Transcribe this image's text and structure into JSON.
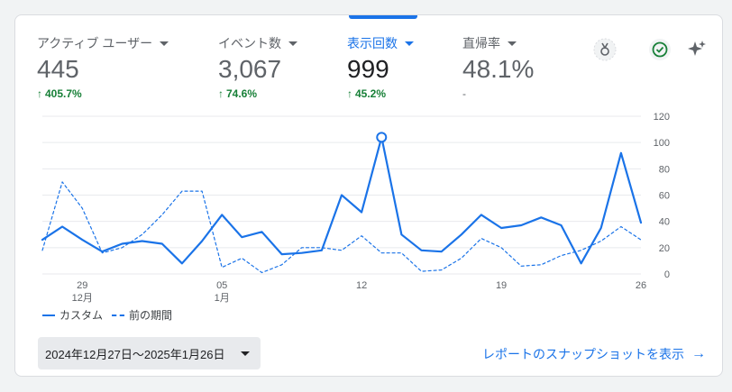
{
  "metrics": [
    {
      "label": "アクティブ ユーザー",
      "value": "445",
      "change": "405.7%",
      "change_dir": "up"
    },
    {
      "label": "イベント数",
      "value": "3,067",
      "change": "74.6%",
      "change_dir": "up"
    },
    {
      "label": "表示回数",
      "value": "999",
      "change": "45.2%",
      "change_dir": "up",
      "active": true
    },
    {
      "label": "直帰率",
      "value": "48.1%",
      "change": "-",
      "change_dir": "none"
    }
  ],
  "icons": {
    "insights": "insights-medal-icon",
    "check": "check-circle-icon",
    "sparkle": "sparkle-icon"
  },
  "colors": {
    "accent": "#1a73e8",
    "positive": "#188038"
  },
  "chart_data": {
    "type": "line",
    "x": [
      "12/27",
      "12/28",
      "12/29",
      "12/30",
      "12/31",
      "1/1",
      "1/2",
      "1/3",
      "1/4",
      "1/5",
      "1/6",
      "1/7",
      "1/8",
      "1/9",
      "1/10",
      "1/11",
      "1/12",
      "1/13",
      "1/14",
      "1/15",
      "1/16",
      "1/17",
      "1/18",
      "1/19",
      "1/20",
      "1/21",
      "1/22",
      "1/23",
      "1/24",
      "1/25",
      "1/26"
    ],
    "x_tick_labels": [
      {
        "day": "29",
        "month": "12月"
      },
      {
        "day": "05",
        "month": "1月"
      },
      {
        "day": "12",
        "month": ""
      },
      {
        "day": "19",
        "month": ""
      },
      {
        "day": "26",
        "month": ""
      }
    ],
    "x_tick_dates": [
      "12/29",
      "1/5",
      "1/12",
      "1/19",
      "1/26"
    ],
    "y_ticks": [
      0,
      20,
      40,
      60,
      80,
      100,
      120
    ],
    "ylim": [
      0,
      120
    ],
    "series": [
      {
        "name": "カスタム",
        "style": "solid",
        "values": [
          26,
          36,
          26,
          17,
          23,
          25,
          23,
          8,
          25,
          45,
          28,
          32,
          15,
          16,
          18,
          60,
          47,
          104,
          30,
          18,
          17,
          30,
          45,
          35,
          37,
          43,
          37,
          8,
          35,
          92,
          39
        ]
      },
      {
        "name": "前の期間",
        "style": "dashed",
        "values": [
          18,
          70,
          50,
          16,
          20,
          30,
          45,
          63,
          63,
          5,
          12,
          1,
          7,
          20,
          20,
          18,
          29,
          16,
          16,
          2,
          3,
          12,
          27,
          20,
          6,
          7,
          14,
          18,
          25,
          36,
          26
        ]
      }
    ],
    "highlight_index": 17
  },
  "legend": [
    {
      "label": "カスタム",
      "style": "solid"
    },
    {
      "label": "前の期間",
      "style": "dashed"
    }
  ],
  "date_range": "2024年12月27日～2025年1月26日",
  "report_link": "レポートのスナップショットを表示"
}
